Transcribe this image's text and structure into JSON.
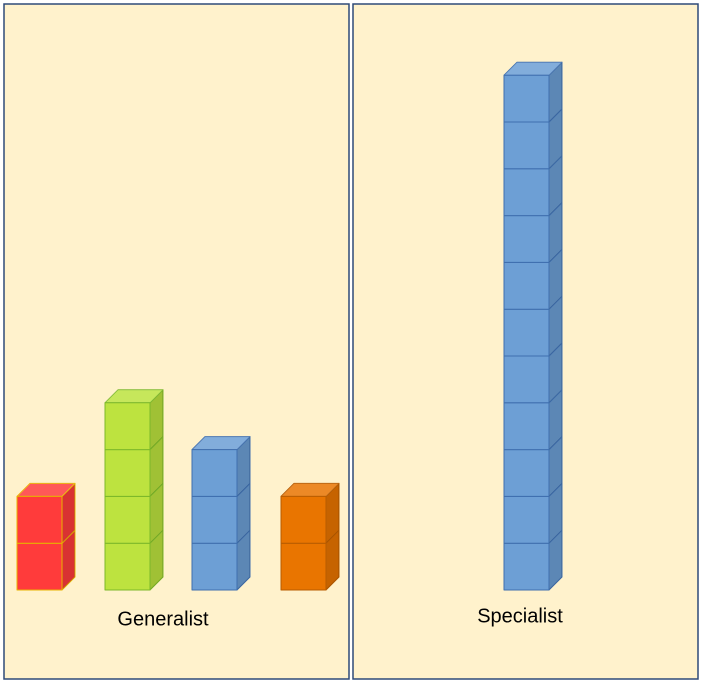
{
  "panels": [
    {
      "label": "Generalist",
      "stacks": [
        {
          "color": "#ff3b3b",
          "edge": "#e8b400",
          "count": 2
        },
        {
          "color": "#bde33f",
          "edge": "#7cb82a",
          "count": 4
        },
        {
          "color": "#6d9fd5",
          "edge": "#3f6fae",
          "count": 3
        },
        {
          "color": "#e97500",
          "edge": "#b85c00",
          "count": 2
        }
      ]
    },
    {
      "label": "Specialist",
      "stacks": [
        {
          "color": "#6d9fd5",
          "edge": "#3f6fae",
          "count": 11
        }
      ]
    }
  ]
}
